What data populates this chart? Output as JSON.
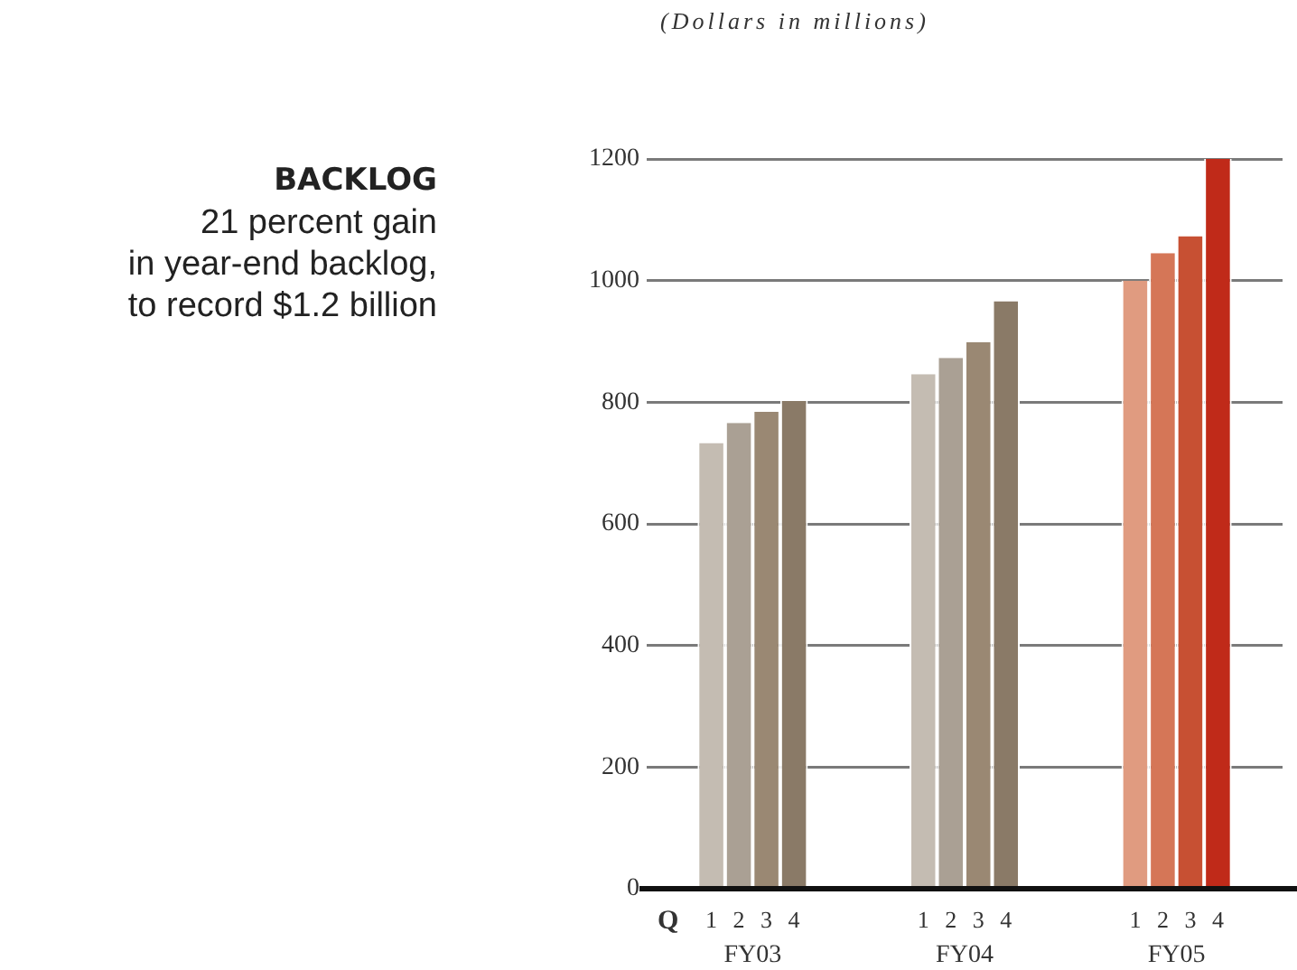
{
  "chart_data": {
    "type": "bar",
    "title": "BACKLOG",
    "subtitle": "21 percent gain\nin year-end backlog,\nto record $1.2 billion",
    "xlabel": "Q",
    "annotations": [
      "(Dollars in millions)"
    ],
    "categories": [
      "FY03",
      "FY04",
      "FY05"
    ],
    "series": [
      {
        "name": "1",
        "colors": [
          "#c4bcb2",
          "#c4bcb2",
          "#e09b80"
        ],
        "values": [
          733,
          846,
          1000
        ]
      },
      {
        "name": "2",
        "colors": [
          "#aaa094",
          "#aaa094",
          "#d57657"
        ],
        "values": [
          766,
          873,
          1045
        ]
      },
      {
        "name": "3",
        "colors": [
          "#9a8873",
          "#9a8873",
          "#c75033"
        ],
        "values": [
          784,
          899,
          1073
        ]
      },
      {
        "name": "4",
        "colors": [
          "#8a7a67",
          "#8a7a67",
          "#c02a19"
        ],
        "values": [
          802,
          966,
          1200
        ]
      }
    ],
    "ylim": [
      0,
      1200
    ],
    "yticks": [
      0,
      200,
      400,
      600,
      800,
      1000,
      1200
    ],
    "grid": "y",
    "legend": false
  }
}
